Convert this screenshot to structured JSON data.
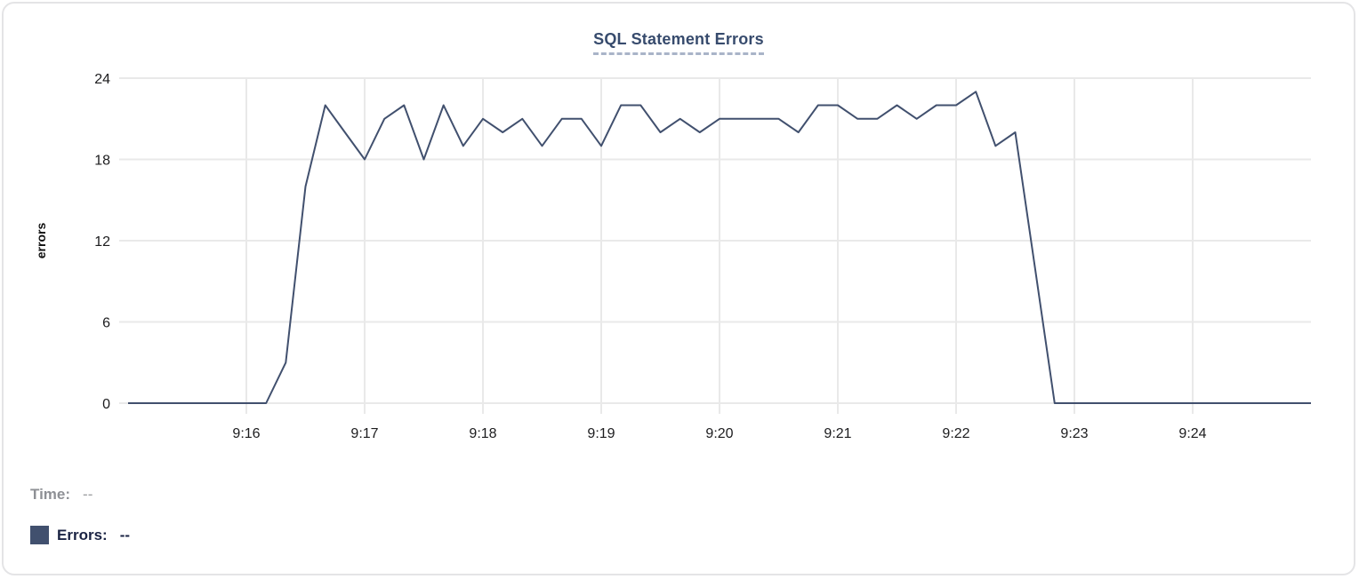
{
  "card": {
    "title": "SQL Statement Errors"
  },
  "tooltip": {
    "time_label": "Time:",
    "time_value": "--",
    "errors_label": "Errors:",
    "errors_value": "--"
  },
  "chart_data": {
    "type": "line",
    "title": "SQL Statement Errors",
    "xlabel": "",
    "ylabel": "errors",
    "series_name": "Errors",
    "line_color": "#41506e",
    "grid_color": "#e9e9e9",
    "tick_text_color": "#1c1c1e",
    "ylim": [
      0,
      24
    ],
    "y_ticks": [
      0,
      6,
      12,
      18,
      24
    ],
    "x_tick_labels": [
      "9:16",
      "9:17",
      "9:18",
      "9:19",
      "9:20",
      "9:21",
      "9:22",
      "9:23",
      "9:24"
    ],
    "x_start": "9:15:00",
    "x_end": "9:25:00",
    "x_interval_seconds": 10,
    "grid": true,
    "legend_position": "bottom-left",
    "values": [
      0,
      0,
      0,
      0,
      0,
      0,
      0,
      0,
      3,
      16,
      22,
      20,
      18,
      21,
      22,
      18,
      22,
      19,
      21,
      20,
      21,
      19,
      21,
      21,
      19,
      22,
      22,
      20,
      21,
      20,
      21,
      21,
      21,
      21,
      20,
      22,
      22,
      21,
      21,
      22,
      21,
      22,
      22,
      23,
      19,
      20,
      10,
      0,
      0,
      0,
      0,
      0,
      0,
      0,
      0,
      0,
      0,
      0,
      0,
      0,
      0
    ]
  }
}
